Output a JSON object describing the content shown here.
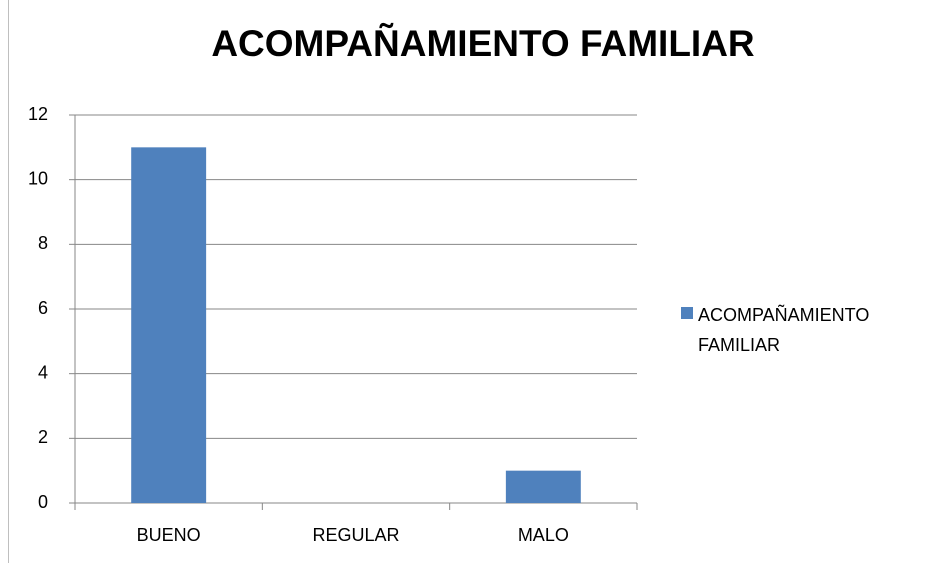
{
  "chart_data": {
    "type": "bar",
    "title": "ACOMPAÑAMIENTO FAMILIAR",
    "categories": [
      "BUENO",
      "REGULAR",
      "MALO"
    ],
    "series": [
      {
        "name": "ACOMPAÑAMIENTO FAMILIAR",
        "color": "#4f81bd",
        "values": [
          11,
          0,
          1
        ]
      }
    ],
    "ylim": [
      0,
      12
    ],
    "yticks": [
      0,
      2,
      4,
      6,
      8,
      10,
      12
    ],
    "grid": true,
    "legend": "right"
  }
}
